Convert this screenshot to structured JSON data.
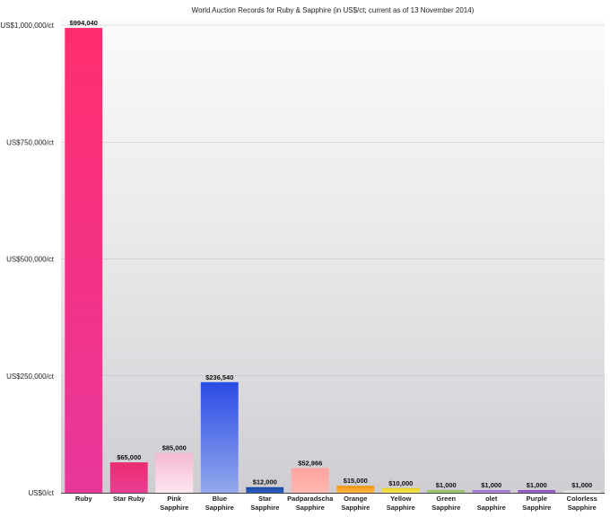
{
  "chart_data": {
    "type": "bar",
    "title": "World Auction Records for Ruby & Sapphire (in US$/ct; current as of 13 November 2014)",
    "xlabel": "",
    "ylabel": "",
    "ylim": [
      0,
      1000000
    ],
    "yticks": [
      {
        "value": 0,
        "label": "US$0/ct"
      },
      {
        "value": 250000,
        "label": "US$250,000/ct"
      },
      {
        "value": 500000,
        "label": "US$500,000/ct"
      },
      {
        "value": 750000,
        "label": "US$750,000/ct"
      },
      {
        "value": 1000000,
        "label": "US$1,000,000/ct"
      }
    ],
    "grid": true,
    "legend": "none",
    "categories": [
      [
        "Ruby"
      ],
      [
        "Star Ruby"
      ],
      [
        "Pink",
        "Sapphire"
      ],
      [
        "Blue",
        "Sapphire"
      ],
      [
        "Star",
        "Sapphire"
      ],
      [
        "Padparadscha",
        "Sapphire"
      ],
      [
        "Orange",
        "Sapphire"
      ],
      [
        "Yellow",
        "Sapphire"
      ],
      [
        "Green",
        "Sapphire"
      ],
      [
        "olet",
        "Sapphire"
      ],
      [
        "Purple",
        "Sapphire"
      ],
      [
        "Colorless",
        "Sapphire"
      ]
    ],
    "values": [
      994040,
      65000,
      85000,
      236540,
      12000,
      52966,
      15000,
      10000,
      1000,
      1000,
      1000,
      1000
    ],
    "value_labels": [
      "$994,040",
      "$65,000",
      "$85,000",
      "$236,540",
      "$12,000",
      "$52,966",
      "$15,000",
      "$10,000",
      "$1,000",
      "$1,000",
      "$1,000",
      "$1,000"
    ],
    "colors": [
      [
        "#ff2d6e",
        "#e8379b"
      ],
      [
        "#ec2b70",
        "#e83f95"
      ],
      [
        "#f6b8d2",
        "#fde7f1"
      ],
      [
        "#2a4be6",
        "#93a9ec"
      ],
      [
        "#1c46a3",
        "#2e62c2"
      ],
      [
        "#ffa4a0",
        "#ffb7b0"
      ],
      [
        "#f19313",
        "#fbb843"
      ],
      [
        "#e9d219",
        "#f5e55c"
      ],
      [
        "#8fbd5c",
        "#a9cf7c"
      ],
      [
        "#9b6fd0",
        "#b48de0"
      ],
      [
        "#8a4fb6",
        "#a36bcc"
      ],
      [
        "#d8d8d8",
        "#eeeeee"
      ]
    ]
  }
}
